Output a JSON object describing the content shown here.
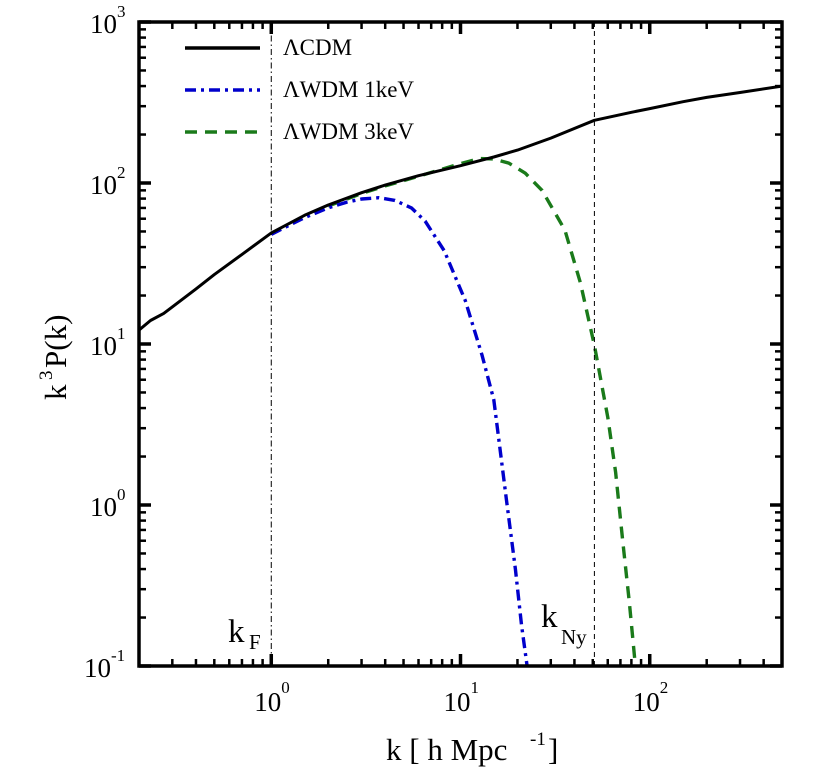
{
  "chart_data": {
    "type": "line",
    "title": "",
    "xlabel": {
      "base": "k [ h Mpc",
      "sup": "-1",
      "tail": "]"
    },
    "ylabel": {
      "pre": "k",
      "sup": "3",
      "post": " P(k)"
    },
    "xscale": "log",
    "yscale": "log",
    "xlim": [
      0.2,
      500
    ],
    "ylim": [
      0.1,
      1000
    ],
    "grid": false,
    "legend_position": "top-left",
    "x_ticks": [
      {
        "value": 1,
        "base": "10",
        "exp": "0"
      },
      {
        "value": 10,
        "base": "10",
        "exp": "1"
      },
      {
        "value": 100,
        "base": "10",
        "exp": "2"
      }
    ],
    "y_ticks": [
      {
        "value": 0.1,
        "base": "10",
        "exp": "-1"
      },
      {
        "value": 1,
        "base": "10",
        "exp": "0"
      },
      {
        "value": 10,
        "base": "10",
        "exp": "1"
      },
      {
        "value": 100,
        "base": "10",
        "exp": "2"
      },
      {
        "value": 1000,
        "base": "10",
        "exp": "3"
      }
    ],
    "series": [
      {
        "name": "ΛCDM",
        "color": "#000000",
        "style": "solid",
        "x": [
          0.2,
          0.23,
          0.27,
          0.3,
          0.4,
          0.5,
          0.7,
          1.0,
          1.5,
          2,
          3,
          4,
          6,
          10,
          15,
          20,
          30,
          51,
          80,
          100,
          150,
          200,
          300,
          500
        ],
        "y": [
          12.2,
          14.0,
          15.5,
          17.0,
          22.0,
          27.0,
          36.0,
          49.0,
          63.0,
          73.0,
          87.0,
          97.0,
          111.0,
          128.0,
          145.0,
          160.0,
          190.0,
          245.0,
          275.0,
          290.0,
          320.0,
          340.0,
          365.0,
          400.0
        ]
      },
      {
        "name": "ΛWDM 1keV",
        "color": "#0000cc",
        "style": "dashdot",
        "x": [
          1.0,
          1.5,
          2.0,
          2.5,
          3.0,
          3.7,
          4.5,
          5.5,
          6.5,
          8.2,
          10.6,
          13.0,
          15.0,
          17.5,
          19.5,
          21.0,
          22.5
        ],
        "y": [
          48.0,
          61.0,
          70.0,
          76.0,
          79.5,
          81.0,
          78.0,
          70.0,
          58.0,
          38.0,
          18.6,
          8.5,
          4.5,
          1.07,
          0.4,
          0.18,
          0.1
        ]
      },
      {
        "name": "ΛWDM 3keV",
        "color": "#1a7a1a",
        "style": "dashed",
        "x": [
          2.0,
          3.0,
          4.0,
          6.0,
          8.0,
          10.0,
          12.6,
          15.0,
          18.0,
          22.0,
          27.0,
          35.6,
          43.0,
          51.0,
          60.0,
          66.0,
          72.0,
          78.0,
          84.0
        ],
        "y": [
          72.0,
          86.0,
          96.0,
          110.0,
          122.0,
          132.0,
          142.0,
          141.0,
          133.0,
          115.0,
          90.0,
          51.0,
          24.0,
          9.8,
          3.5,
          1.6,
          0.6,
          0.25,
          0.1
        ]
      }
    ],
    "vlines": [
      {
        "name": "k_F",
        "x": 1.0,
        "label": "k",
        "sub": "F",
        "style": "dashdot"
      },
      {
        "name": "k_Ny",
        "x": 51,
        "label": "k",
        "sub": "Ny",
        "style": "dashed"
      }
    ]
  }
}
